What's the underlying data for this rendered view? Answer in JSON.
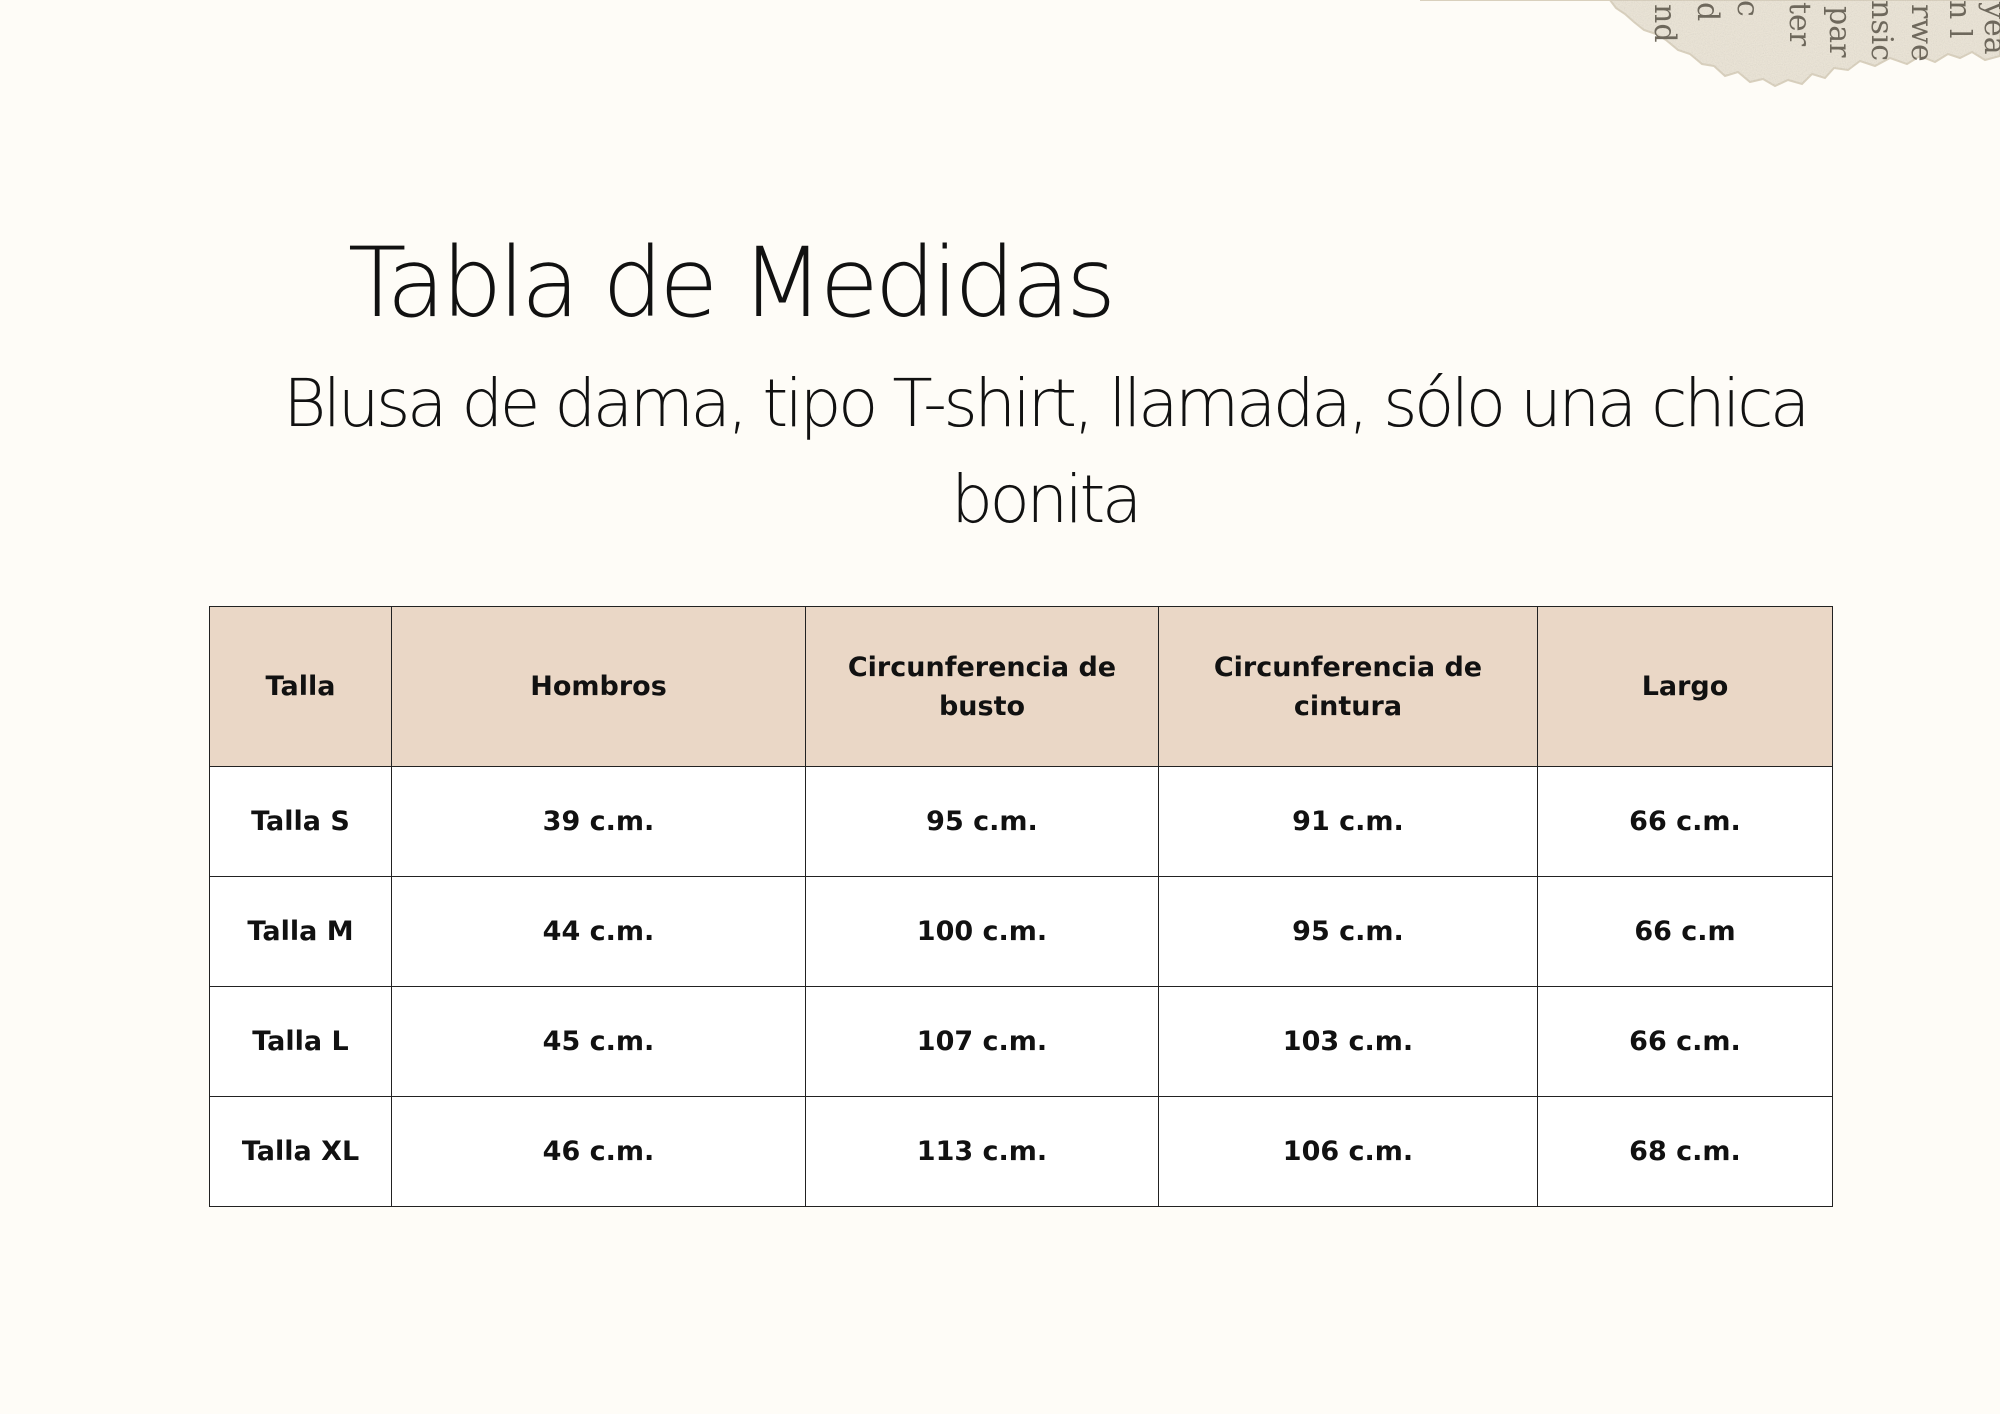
{
  "page": {
    "title": "Tabla de Medidas",
    "subtitle": "Blusa de dama, tipo T-shirt, llamada, sólo una chica bonita"
  },
  "colors": {
    "background": "#fefcf7",
    "header_fill": "#ead7c6",
    "cell_fill": "#ffffff",
    "border": "#222222",
    "text": "#111111"
  },
  "table": {
    "headers": [
      "Talla",
      "Hombros",
      "Circunferencia de busto",
      "Circunferencia de cintura",
      "Largo"
    ],
    "rows": [
      [
        "Talla S",
        "39 c.m.",
        "95 c.m.",
        "91 c.m.",
        "66 c.m."
      ],
      [
        "Talla M",
        "44 c.m.",
        "100 c.m.",
        "95 c.m.",
        "66 c.m"
      ],
      [
        "Talla L",
        "45 c.m.",
        "107 c.m.",
        "103 c.m.",
        "66 c.m."
      ],
      [
        "Talla XL",
        "46 c.m.",
        "113 c.m.",
        "106 c.m.",
        "68 c.m."
      ]
    ]
  }
}
